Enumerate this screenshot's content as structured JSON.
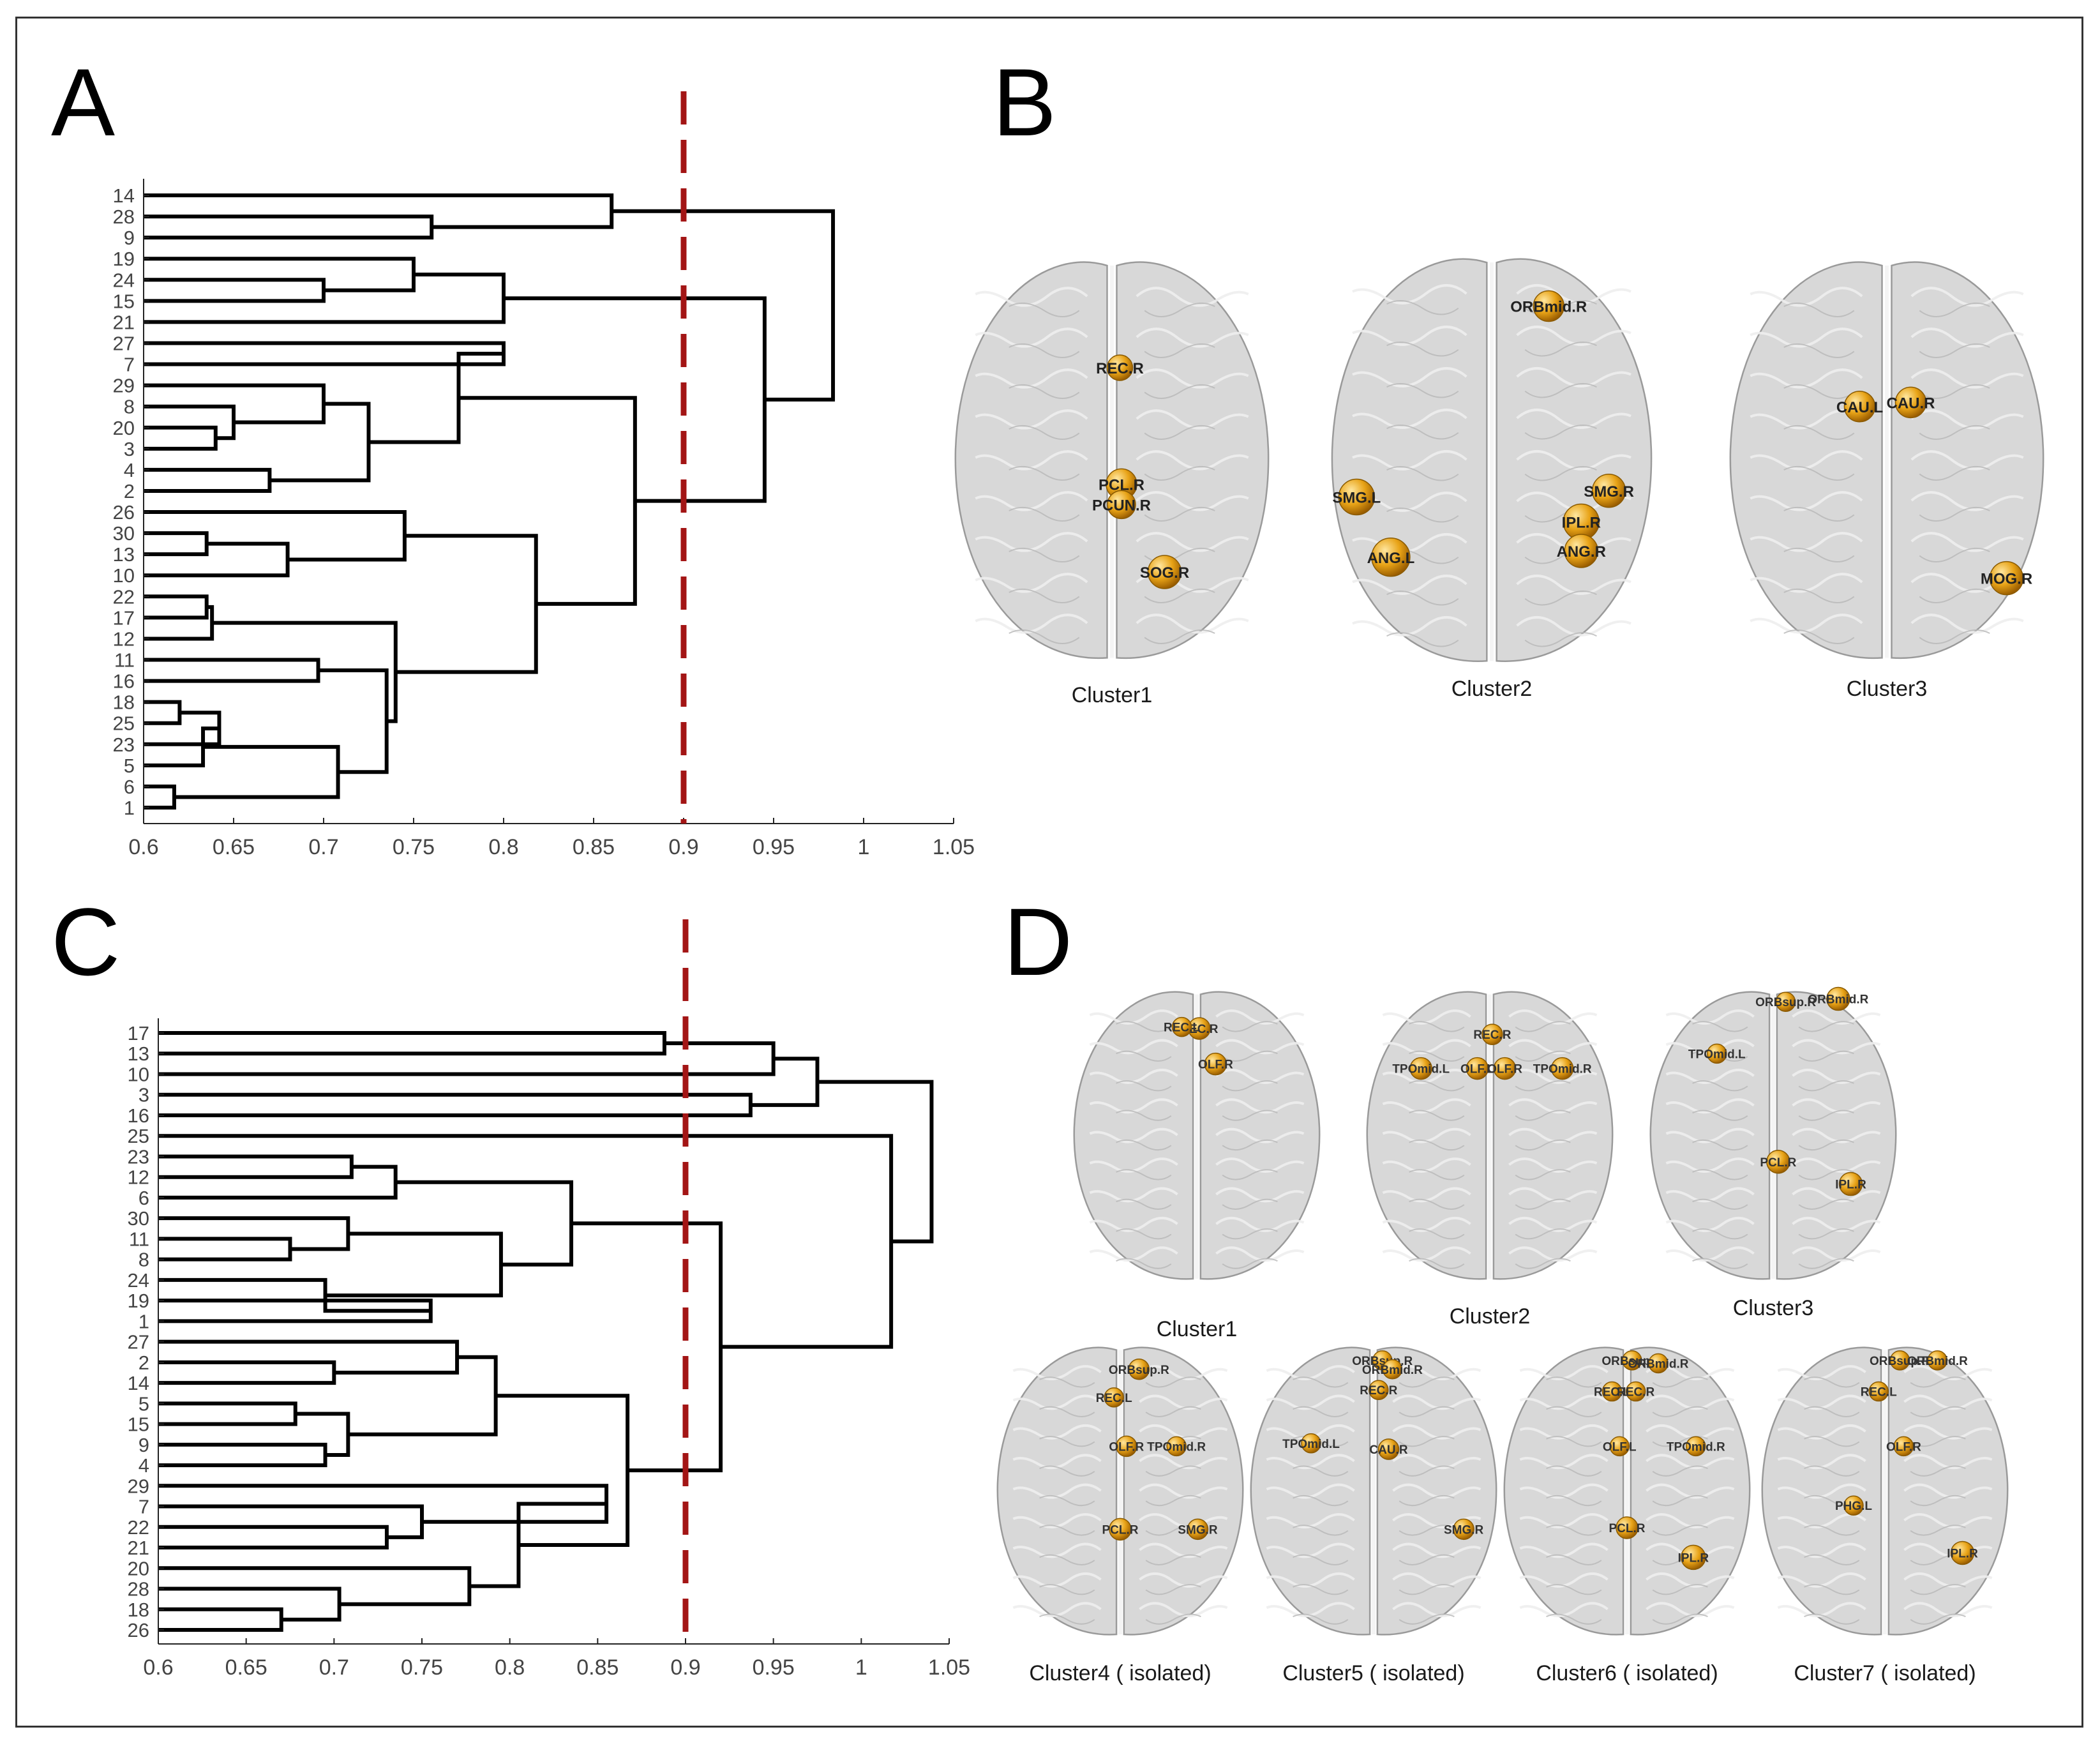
{
  "panels": {
    "a": "A",
    "b": "B",
    "c": "C",
    "d": "D"
  },
  "colors": {
    "line": "#000000",
    "threshold": "#a31515",
    "node": "#e8a317",
    "brain": "#d8d8d8"
  },
  "chart_data": [
    {
      "type": "dendrogram",
      "panel": "A",
      "orientation": "horizontal",
      "leaf_labels": [
        "14",
        "28",
        "9",
        "19",
        "24",
        "15",
        "21",
        "27",
        "7",
        "29",
        "8",
        "20",
        "3",
        "4",
        "2",
        "26",
        "30",
        "13",
        "10",
        "22",
        "17",
        "12",
        "11",
        "16",
        "18",
        "25",
        "23",
        "5",
        "6",
        "1"
      ],
      "merges": [
        {
          "a": "28",
          "b": "9",
          "height": 0.76
        },
        {
          "a": "14",
          "b": "m0",
          "height": 0.86
        },
        {
          "a": "24",
          "b": "15",
          "height": 0.7
        },
        {
          "a": "19",
          "b": "m2",
          "height": 0.75
        },
        {
          "a": "m3",
          "b": "21",
          "height": 0.8
        },
        {
          "a": "27",
          "b": "7",
          "height": 0.8
        },
        {
          "a": "20",
          "b": "3",
          "height": 0.64
        },
        {
          "a": "8",
          "b": "m6",
          "height": 0.65
        },
        {
          "a": "29",
          "b": "m7",
          "height": 0.7
        },
        {
          "a": "4",
          "b": "2",
          "height": 0.67
        },
        {
          "a": "m8",
          "b": "m9",
          "height": 0.725
        },
        {
          "a": "m5",
          "b": "m10",
          "height": 0.775
        },
        {
          "a": "30",
          "b": "13",
          "height": 0.635
        },
        {
          "a": "m12",
          "b": "10",
          "height": 0.68
        },
        {
          "a": "26",
          "b": "m13",
          "height": 0.745
        },
        {
          "a": "22",
          "b": "17",
          "height": 0.635
        },
        {
          "a": "m15",
          "b": "12",
          "height": 0.638
        },
        {
          "a": "11",
          "b": "16",
          "height": 0.697
        },
        {
          "a": "18",
          "b": "25",
          "height": 0.62
        },
        {
          "a": "m18",
          "b": "23",
          "height": 0.642
        },
        {
          "a": "m19",
          "b": "5",
          "height": 0.633
        },
        {
          "a": "6",
          "b": "1",
          "height": 0.617
        },
        {
          "a": "m20",
          "b": "m21",
          "height": 0.708
        },
        {
          "a": "m17",
          "b": "m22",
          "height": 0.735
        },
        {
          "a": "m16",
          "b": "m23",
          "height": 0.74
        },
        {
          "a": "m14",
          "b": "m24",
          "height": 0.818
        },
        {
          "a": "m11",
          "b": "m25",
          "height": 0.873
        },
        {
          "a": "m4",
          "b": "m26",
          "height": 0.945
        },
        {
          "a": "m1",
          "b": "m27",
          "height": 0.983
        }
      ],
      "xlim": [
        0.6,
        1.05
      ],
      "xticks": [
        "0.6",
        "0.65",
        "0.7",
        "0.75",
        "0.8",
        "0.85",
        "0.9",
        "0.95",
        "1",
        "1.05"
      ],
      "threshold": 0.9
    },
    {
      "type": "dendrogram",
      "panel": "C",
      "orientation": "horizontal",
      "leaf_labels": [
        "17",
        "13",
        "10",
        "3",
        "16",
        "25",
        "23",
        "12",
        "6",
        "30",
        "11",
        "8",
        "24",
        "19",
        "1",
        "27",
        "2",
        "14",
        "5",
        "15",
        "9",
        "4",
        "29",
        "7",
        "22",
        "21",
        "20",
        "28",
        "18",
        "26"
      ],
      "merges": [
        {
          "a": "23",
          "b": "12",
          "height": 0.71
        },
        {
          "a": "m0",
          "b": "6",
          "height": 0.735
        },
        {
          "a": "11",
          "b": "8",
          "height": 0.675
        },
        {
          "a": "30",
          "b": "m2",
          "height": 0.708
        },
        {
          "a": "19",
          "b": "1",
          "height": 0.755
        },
        {
          "a": "24",
          "b": "m4",
          "height": 0.695
        },
        {
          "a": "m3",
          "b": "m5",
          "height": 0.795
        },
        {
          "a": "m1",
          "b": "m6",
          "height": 0.835
        },
        {
          "a": "2",
          "b": "14",
          "height": 0.7
        },
        {
          "a": "27",
          "b": "m8",
          "height": 0.77
        },
        {
          "a": "5",
          "b": "15",
          "height": 0.678
        },
        {
          "a": "9",
          "b": "4",
          "height": 0.695
        },
        {
          "a": "m10",
          "b": "m11",
          "height": 0.708
        },
        {
          "a": "m9",
          "b": "m12",
          "height": 0.792
        },
        {
          "a": "21",
          "b": "22",
          "height": 0.73
        },
        {
          "a": "7",
          "b": "m14",
          "height": 0.75
        },
        {
          "a": "29",
          "b": "m15",
          "height": 0.855
        },
        {
          "a": "18",
          "b": "26",
          "height": 0.67
        },
        {
          "a": "28",
          "b": "m17",
          "height": 0.703
        },
        {
          "a": "20",
          "b": "m18",
          "height": 0.777
        },
        {
          "a": "m16",
          "b": "m19",
          "height": 0.805
        },
        {
          "a": "m13",
          "b": "m20",
          "height": 0.867
        },
        {
          "a": "m7",
          "b": "m21",
          "height": 0.92
        },
        {
          "a": "25",
          "b": "m22",
          "height": 1.017
        },
        {
          "a": "17",
          "b": "13",
          "height": 0.888
        },
        {
          "a": "m24",
          "b": "10",
          "height": 0.95
        },
        {
          "a": "3",
          "b": "16",
          "height": 0.937
        },
        {
          "a": "m25",
          "b": "m26",
          "height": 0.975
        },
        {
          "a": "m27",
          "b": "m23",
          "height": 1.04
        }
      ],
      "xlim": [
        0.6,
        1.05
      ],
      "xticks": [
        "0.6",
        "0.65",
        "0.7",
        "0.75",
        "0.8",
        "0.85",
        "0.9",
        "0.95",
        "1",
        "1.05"
      ],
      "threshold": 0.9
    }
  ],
  "brainsB": [
    {
      "caption": "Cluster1",
      "regions": [
        {
          "name": "REC.R",
          "dx": 0.05,
          "dy": -0.45,
          "r": 20
        },
        {
          "name": "PCL.R",
          "dx": 0.06,
          "dy": 0.12,
          "r": 24
        },
        {
          "name": "PCUN.R",
          "dx": 0.06,
          "dy": 0.22,
          "r": 22
        },
        {
          "name": "SOG.R",
          "dx": 0.33,
          "dy": 0.55,
          "r": 26
        }
      ]
    },
    {
      "caption": "Cluster2",
      "regions": [
        {
          "name": "ORBmid.R",
          "dx": 0.35,
          "dy": -0.74,
          "r": 24
        },
        {
          "name": "SMG.L",
          "dx": -0.83,
          "dy": 0.18,
          "r": 28
        },
        {
          "name": "ANG.L",
          "dx": -0.62,
          "dy": 0.47,
          "r": 30
        },
        {
          "name": "SMG.R",
          "dx": 0.72,
          "dy": 0.15,
          "r": 26
        },
        {
          "name": "IPL.R",
          "dx": 0.55,
          "dy": 0.3,
          "r": 28
        },
        {
          "name": "ANG.R",
          "dx": 0.55,
          "dy": 0.44,
          "r": 26
        }
      ]
    },
    {
      "caption": "Cluster3",
      "regions": [
        {
          "name": "CAU.L",
          "dx": -0.17,
          "dy": -0.26,
          "r": 24
        },
        {
          "name": "CAU.R",
          "dx": 0.15,
          "dy": -0.28,
          "r": 24
        },
        {
          "name": "MOG.R",
          "dx": 0.75,
          "dy": 0.58,
          "r": 26
        }
      ]
    }
  ],
  "brainsD": [
    {
      "caption": "Cluster1",
      "regions": [
        {
          "name": "REC.R",
          "dx": 0.02,
          "dy": -0.72,
          "r": 17
        },
        {
          "name": "REC.L",
          "dx": -0.12,
          "dy": -0.73,
          "r": 15
        },
        {
          "name": "OLF.R",
          "dx": 0.15,
          "dy": -0.48,
          "r": 17
        }
      ]
    },
    {
      "caption": "Cluster2",
      "regions": [
        {
          "name": "REC.R",
          "dx": 0.02,
          "dy": -0.68,
          "r": 16
        },
        {
          "name": "OLF.L",
          "dx": -0.1,
          "dy": -0.45,
          "r": 17
        },
        {
          "name": "OLF.R",
          "dx": 0.12,
          "dy": -0.45,
          "r": 17
        },
        {
          "name": "TPOmid.L",
          "dx": -0.55,
          "dy": -0.45,
          "r": 17
        },
        {
          "name": "TPOmid.R",
          "dx": 0.58,
          "dy": -0.45,
          "r": 17
        }
      ]
    },
    {
      "caption": "Cluster3",
      "regions": [
        {
          "name": "ORBsup.R",
          "dx": 0.1,
          "dy": -0.9,
          "r": 15
        },
        {
          "name": "ORBmid.R",
          "dx": 0.52,
          "dy": -0.92,
          "r": 18
        },
        {
          "name": "TPOmid.L",
          "dx": -0.45,
          "dy": -0.55,
          "r": 15
        },
        {
          "name": "PCL.R",
          "dx": 0.04,
          "dy": 0.18,
          "r": 18
        },
        {
          "name": "IPL.R",
          "dx": 0.62,
          "dy": 0.33,
          "r": 18
        }
      ]
    },
    {
      "caption": "Cluster4 ( isolated)",
      "regions": [
        {
          "name": "ORBsup.R",
          "dx": 0.15,
          "dy": -0.82,
          "r": 16
        },
        {
          "name": "REC.L",
          "dx": -0.05,
          "dy": -0.63,
          "r": 15
        },
        {
          "name": "OLF.R",
          "dx": 0.05,
          "dy": -0.3,
          "r": 16
        },
        {
          "name": "TPOmid.R",
          "dx": 0.45,
          "dy": -0.3,
          "r": 15
        },
        {
          "name": "PCL.R",
          "dx": 0.0,
          "dy": 0.26,
          "r": 17
        },
        {
          "name": "SMG.R",
          "dx": 0.62,
          "dy": 0.26,
          "r": 16
        }
      ]
    },
    {
      "caption": "Cluster5 ( isolated)",
      "regions": [
        {
          "name": "ORBsup.R",
          "dx": 0.07,
          "dy": -0.88,
          "r": 15
        },
        {
          "name": "ORBmid.R",
          "dx": 0.15,
          "dy": -0.82,
          "r": 15
        },
        {
          "name": "REC.R",
          "dx": 0.04,
          "dy": -0.68,
          "r": 15
        },
        {
          "name": "TPOmid.L",
          "dx": -0.5,
          "dy": -0.32,
          "r": 15
        },
        {
          "name": "CAU.R",
          "dx": 0.12,
          "dy": -0.28,
          "r": 16
        },
        {
          "name": "SMG.R",
          "dx": 0.72,
          "dy": 0.26,
          "r": 16
        }
      ]
    },
    {
      "caption": "Cluster6 ( isolated)",
      "regions": [
        {
          "name": "ORBsup.R",
          "dx": 0.04,
          "dy": -0.88,
          "r": 15
        },
        {
          "name": "ORBmid.R",
          "dx": 0.25,
          "dy": -0.86,
          "r": 15
        },
        {
          "name": "REC.L",
          "dx": -0.12,
          "dy": -0.67,
          "r": 15
        },
        {
          "name": "REC.R",
          "dx": 0.07,
          "dy": -0.67,
          "r": 15
        },
        {
          "name": "OLF.L",
          "dx": -0.06,
          "dy": -0.3,
          "r": 15
        },
        {
          "name": "TPOmid.R",
          "dx": 0.55,
          "dy": -0.3,
          "r": 15
        },
        {
          "name": "PCL.R",
          "dx": 0.0,
          "dy": 0.25,
          "r": 17
        },
        {
          "name": "IPL.R",
          "dx": 0.53,
          "dy": 0.45,
          "r": 19
        }
      ]
    },
    {
      "caption": "Cluster7 ( isolated)",
      "regions": [
        {
          "name": "ORBsup.R",
          "dx": 0.12,
          "dy": -0.88,
          "r": 15
        },
        {
          "name": "ORBmid.R",
          "dx": 0.42,
          "dy": -0.88,
          "r": 15
        },
        {
          "name": "REC.L",
          "dx": -0.05,
          "dy": -0.67,
          "r": 15
        },
        {
          "name": "OLF.R",
          "dx": 0.15,
          "dy": -0.3,
          "r": 15
        },
        {
          "name": "PHG.L",
          "dx": -0.25,
          "dy": 0.1,
          "r": 15
        },
        {
          "name": "IPL.R",
          "dx": 0.62,
          "dy": 0.42,
          "r": 18
        }
      ]
    }
  ]
}
